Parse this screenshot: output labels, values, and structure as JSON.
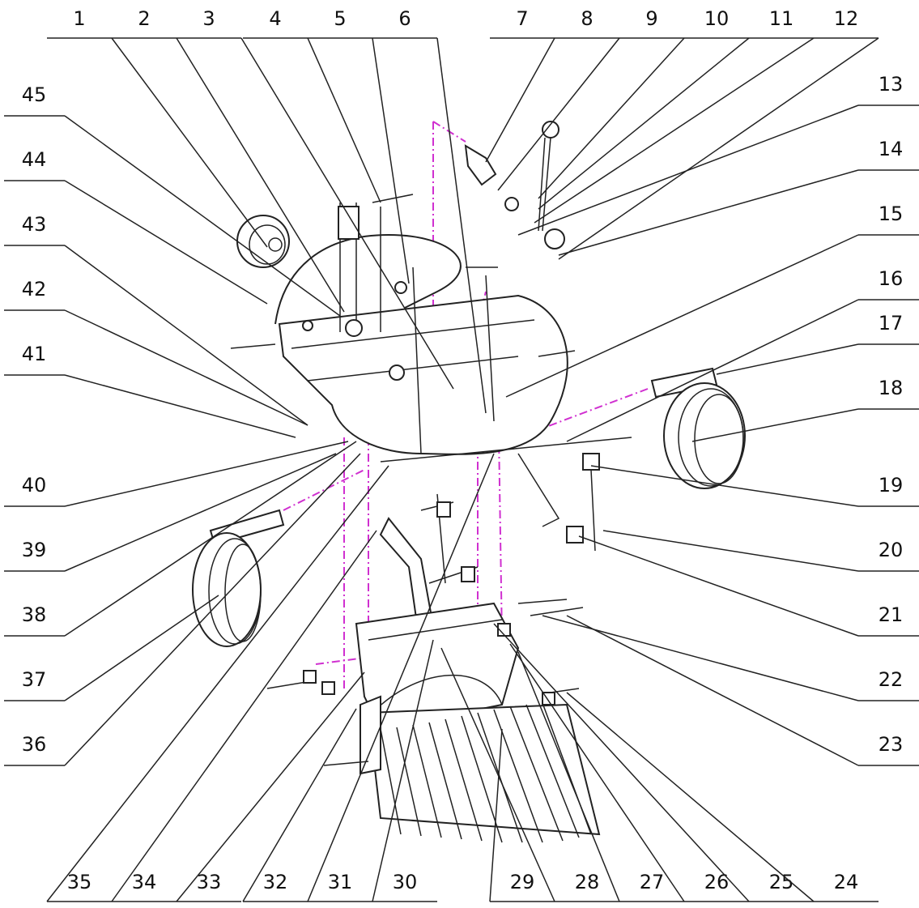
{
  "callouts": {
    "top": [
      "1",
      "2",
      "3",
      "4",
      "5",
      "6",
      "7",
      "8",
      "9",
      "10",
      "11",
      "12"
    ],
    "right": [
      "13",
      "14",
      "15",
      "16",
      "17",
      "18",
      "19",
      "20",
      "21",
      "22",
      "23"
    ],
    "bottom": [
      "35",
      "34",
      "33",
      "32",
      "31",
      "30",
      "29",
      "28",
      "27",
      "26",
      "25",
      "24"
    ],
    "left": [
      "45",
      "44",
      "43",
      "42",
      "41",
      "40",
      "39",
      "38",
      "37",
      "36"
    ]
  }
}
